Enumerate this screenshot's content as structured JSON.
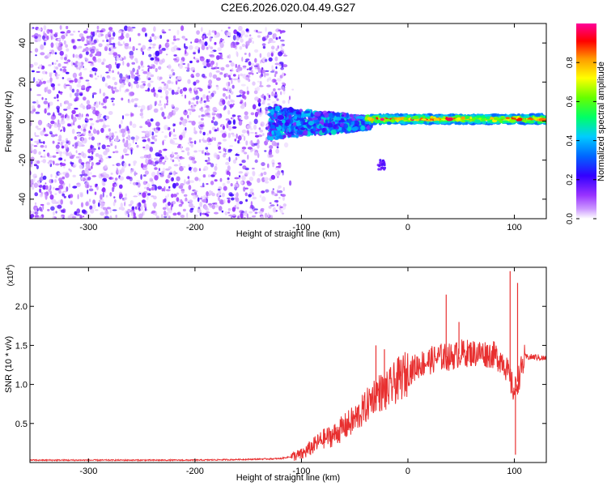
{
  "title": "C2E6.2026.020.04.49.G27",
  "chart_data": [
    {
      "type": "heatmap",
      "xlabel": "Height of straight line (km)",
      "ylabel": "Frequency (Hz)",
      "xlim": [
        -355,
        130
      ],
      "ylim": [
        -50,
        50
      ],
      "xticks": [
        -300,
        -200,
        -100,
        0,
        100
      ],
      "yticks": [
        -40,
        -20,
        0,
        20,
        40
      ],
      "grid": false,
      "colorbar": {
        "label": "Normalized spectral amplitude",
        "range": [
          0,
          1
        ],
        "ticks": [
          "0.0",
          "0.2",
          "0.4",
          "0.6",
          "0.8"
        ],
        "colormap": "rainbow (white-violet-blue-cyan-green-yellow-orange-red-magenta)",
        "colors": [
          "#ffffff",
          "#cc99ff",
          "#9933ff",
          "#6600ff",
          "#0000ff",
          "#00ccff",
          "#00ff66",
          "#99ff00",
          "#ffff00",
          "#ff9900",
          "#ff0000",
          "#ff0099"
        ]
      },
      "regions": [
        {
          "x_range": [
            -355,
            -115
          ],
          "freq_range": [
            -50,
            48
          ],
          "amplitude": "0.0-0.2 (noise, violet)"
        },
        {
          "x_range": [
            -130,
            -40
          ],
          "freq_range": [
            -8,
            8
          ],
          "amplitude": "0.1-0.5 (blue/cyan band, converging toward 0 Hz)"
        },
        {
          "x_range": [
            -40,
            130
          ],
          "freq_range": [
            -3,
            3
          ],
          "amplitude": "0.4-1.0 (narrow line near 0 Hz, green/yellow/red)"
        },
        {
          "x_range": [
            -28,
            -20
          ],
          "freq_range": [
            -25,
            -20
          ],
          "amplitude": "~0.15 (small blob)"
        }
      ]
    },
    {
      "type": "line",
      "xlabel": "Height of straight line (km)",
      "ylabel": "SNR (10 * v/v)",
      "y_multiplier_label": "(x10",
      "y_multiplier_exp": "4",
      "y_multiplier_close": ")",
      "xlim": [
        -355,
        130
      ],
      "ylim": [
        0,
        2.5
      ],
      "xticks": [
        -300,
        -200,
        -100,
        0,
        100
      ],
      "yticks": [
        0.5,
        1.0,
        1.5,
        2.0
      ],
      "ytick_labels": [
        "0.5",
        "1.0",
        "1.5",
        "2.0"
      ],
      "color": "#e83030",
      "series": [
        {
          "x": [
            -355,
            -300,
            -250,
            -200,
            -150,
            -120,
            -100,
            -90,
            -80,
            -70,
            -60,
            -50,
            -40,
            -30,
            -20,
            -10,
            0,
            10,
            20,
            30,
            40,
            50,
            60,
            70,
            80,
            90,
            100,
            110,
            120,
            130
          ],
          "y": [
            0.03,
            0.03,
            0.03,
            0.03,
            0.04,
            0.05,
            0.1,
            0.2,
            0.3,
            0.35,
            0.45,
            0.55,
            0.7,
            0.9,
            0.9,
            1.05,
            1.15,
            1.25,
            1.3,
            1.35,
            1.35,
            1.4,
            1.4,
            1.4,
            1.38,
            1.3,
            0.9,
            1.35,
            1.35,
            1.33
          ],
          "peaks": [
            {
              "x": -30,
              "y": 1.5
            },
            {
              "x": -22,
              "y": 1.45
            },
            {
              "x": 36,
              "y": 2.15
            },
            {
              "x": 48,
              "y": 1.8
            },
            {
              "x": 96,
              "y": 2.45
            },
            {
              "x": 103,
              "y": 2.3
            },
            {
              "x": 101,
              "y": 0.1
            }
          ]
        }
      ]
    }
  ]
}
